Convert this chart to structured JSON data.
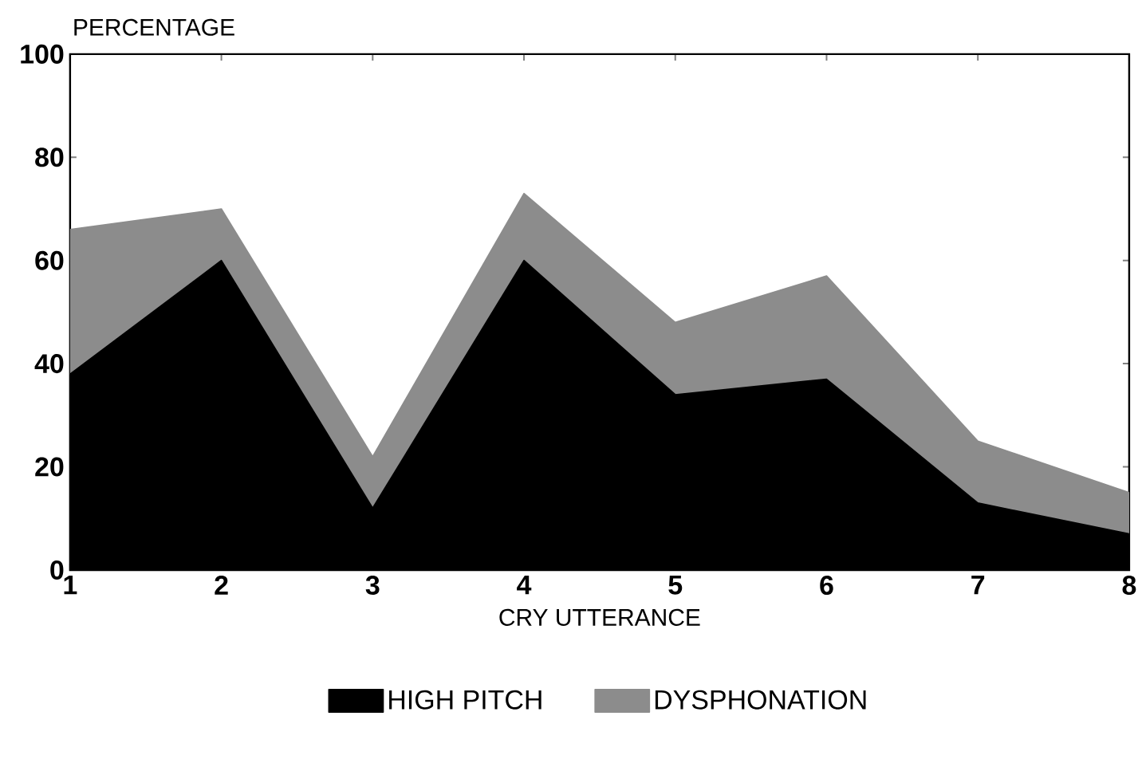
{
  "chart_data": {
    "type": "area",
    "stacked": true,
    "xlabel": "CRY UTTERANCE",
    "ylabel": "PERCENTAGE",
    "x": [
      1,
      2,
      3,
      4,
      5,
      6,
      7,
      8
    ],
    "series": [
      {
        "name": "HIGH PITCH",
        "color": "#000000",
        "values": [
          38,
          60,
          12,
          60,
          34,
          37,
          13,
          7
        ]
      },
      {
        "name": "DYSPHONATION",
        "color": "#8c8c8c",
        "values": [
          28,
          10,
          10,
          13,
          14,
          20,
          12,
          8
        ]
      }
    ],
    "xlim": [
      1,
      8
    ],
    "xticks": [
      1,
      2,
      3,
      4,
      5,
      6,
      7,
      8
    ],
    "ylim": [
      0,
      100
    ],
    "yticks": [
      0,
      20,
      40,
      60,
      80,
      100
    ],
    "legend": "bottom",
    "grid": false
  }
}
